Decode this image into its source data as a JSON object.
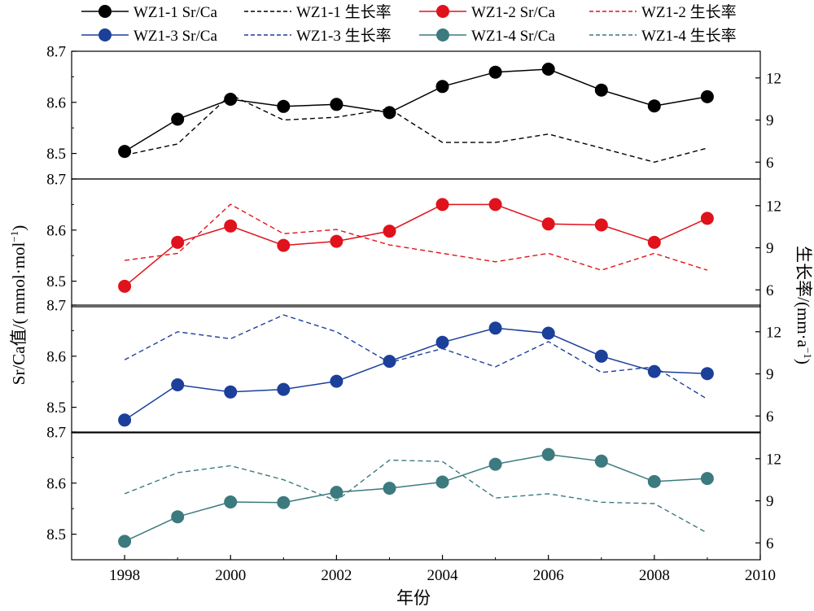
{
  "chart_data": {
    "type": "line",
    "xlabel": "年份",
    "ylabel_left": "Sr/Ca值/( mmol·mol",
    "ylabel_left_sup": "−1",
    "ylabel_left_close": ")",
    "ylabel_right": "生长率/(mm·a",
    "ylabel_right_sup": "−1",
    "ylabel_right_close": ")",
    "x_ticks": [
      "1998",
      "2000",
      "2002",
      "2004",
      "2006",
      "2008",
      "2010"
    ],
    "xlim": [
      1997,
      2010
    ],
    "ylim_left": [
      8.45,
      8.7
    ],
    "ylim_right": [
      4.8,
      13.9
    ],
    "y_ticks_left": [
      "8.5",
      "8.6",
      "8.7"
    ],
    "y_ticks_right": [
      "6",
      "9",
      "12"
    ],
    "grid": false,
    "legend_position": "top",
    "legend": [
      {
        "label": "WZ1-1 Sr/Ca",
        "style": "solid-marker",
        "color": "#000000"
      },
      {
        "label": "WZ1-1 生长率",
        "style": "dashed",
        "color": "#000000"
      },
      {
        "label": "WZ1-2 Sr/Ca",
        "style": "solid-marker",
        "color": "#e0121b"
      },
      {
        "label": "WZ1-2 生长率",
        "style": "dashed",
        "color": "#e0121b"
      },
      {
        "label": "WZ1-3 Sr/Ca",
        "style": "solid-marker",
        "color": "#1c3f9a"
      },
      {
        "label": "WZ1-3 生长率",
        "style": "dashed",
        "color": "#1c3f9a"
      },
      {
        "label": "WZ1-4 Sr/Ca",
        "style": "solid-marker",
        "color": "#3b7a7e"
      },
      {
        "label": "WZ1-4 生长率",
        "style": "dashed",
        "color": "#3b7a7e"
      }
    ],
    "panels": [
      {
        "name": "WZ1-1",
        "color": "#000000",
        "x": [
          1998,
          1999,
          2000,
          2001,
          2002,
          2003,
          2004,
          2005,
          2006,
          2007,
          2008,
          2009
        ],
        "sr_ca": [
          8.504,
          8.567,
          8.606,
          8.592,
          8.596,
          8.58,
          8.631,
          8.659,
          8.665,
          8.624,
          8.593,
          8.611
        ],
        "growth_x": [
          1998,
          1999,
          2000,
          2001,
          2002,
          2003,
          2004,
          2005,
          2006,
          2007,
          2008,
          2009
        ],
        "growth": [
          6.5,
          7.3,
          10.8,
          9.0,
          9.2,
          9.8,
          7.4,
          7.4,
          8.0,
          7.0,
          6.0,
          7.0
        ]
      },
      {
        "name": "WZ1-2",
        "color": "#e0121b",
        "x": [
          1998,
          1999,
          2000,
          2001,
          2002,
          2003,
          2004,
          2005,
          2006,
          2007,
          2008,
          2009
        ],
        "sr_ca": [
          8.49,
          8.576,
          8.608,
          8.57,
          8.578,
          8.598,
          8.65,
          8.65,
          8.612,
          8.61,
          8.576,
          8.623
        ],
        "growth_x": [
          1998,
          1999,
          2000,
          2001,
          2002,
          2003,
          2004,
          2005,
          2006,
          2007,
          2008,
          2009
        ],
        "growth": [
          8.1,
          8.6,
          12.1,
          10.0,
          10.3,
          9.2,
          8.6,
          8.0,
          8.6,
          7.4,
          8.6,
          7.4
        ]
      },
      {
        "name": "WZ1-3",
        "color": "#1c3f9a",
        "x": [
          1998,
          1999,
          2000,
          2001,
          2002,
          2003,
          2004,
          2005,
          2006,
          2007,
          2008,
          2009
        ],
        "sr_ca": [
          8.475,
          8.544,
          8.53,
          8.535,
          8.551,
          8.59,
          8.627,
          8.655,
          8.645,
          8.6,
          8.57,
          8.566
        ],
        "growth_x": [
          1998,
          1999,
          2000,
          2001,
          2002,
          2003,
          2004,
          2005,
          2006,
          2007,
          2008,
          2009
        ],
        "growth": [
          10.0,
          12.0,
          11.5,
          13.2,
          12.0,
          9.8,
          10.8,
          9.5,
          11.3,
          9.1,
          9.5,
          7.2
        ]
      },
      {
        "name": "WZ1-4",
        "color": "#3b7a7e",
        "x": [
          1998,
          1999,
          2000,
          2001,
          2002,
          2003,
          2004,
          2005,
          2006,
          2007,
          2008,
          2009
        ],
        "sr_ca": [
          8.486,
          8.534,
          8.563,
          8.562,
          8.582,
          8.59,
          8.602,
          8.637,
          8.656,
          8.643,
          8.603,
          8.609
        ],
        "growth_x": [
          1998,
          1999,
          2000,
          2001,
          2002,
          2003,
          2004,
          2005,
          2006,
          2007,
          2008,
          2009
        ],
        "growth": [
          9.5,
          11.0,
          11.5,
          10.5,
          9.0,
          11.9,
          11.8,
          9.2,
          9.5,
          8.9,
          8.8,
          6.7
        ]
      }
    ]
  }
}
